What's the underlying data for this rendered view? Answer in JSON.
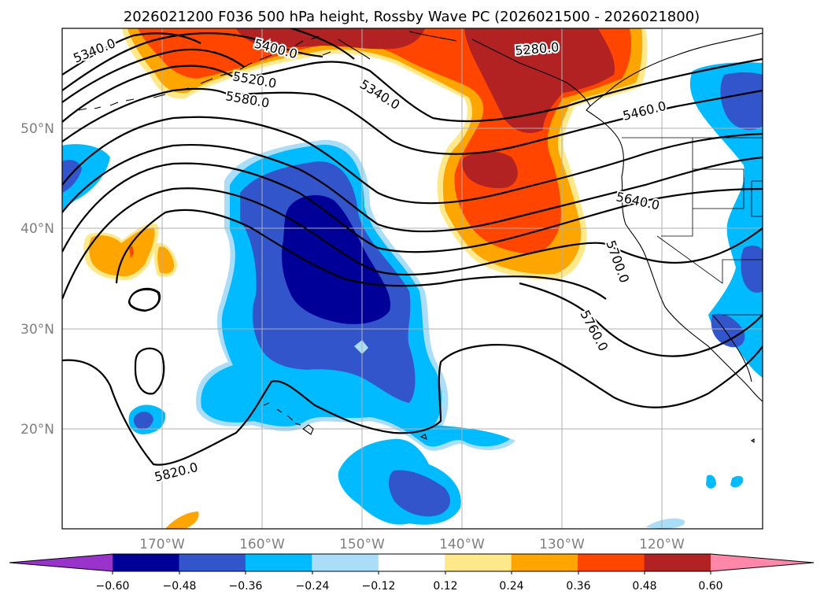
{
  "title": "2026021200 F036 500 hPa height, Rossby Wave PC (2026021500 - 2026021800)",
  "map": {
    "lon_ticks": [
      "170°W",
      "160°W",
      "150°W",
      "140°W",
      "130°W",
      "120°W"
    ],
    "lat_ticks": [
      "50°N",
      "40°N",
      "30°N",
      "20°N"
    ],
    "gridlines": true
  },
  "contour_labels": [
    "5340.0",
    "5400.0",
    "5520.0",
    "5580.0",
    "5340.0",
    "5280.0",
    "5460.0",
    "5640.0",
    "5700.0",
    "5760.0",
    "5820.0"
  ],
  "colorbar": {
    "ticks": [
      "−0.60",
      "−0.48",
      "−0.36",
      "−0.24",
      "−0.12",
      "0.12",
      "0.24",
      "0.36",
      "0.48",
      "0.60"
    ],
    "colors": [
      "#9933cc",
      "#000099",
      "#3355cc",
      "#00bbff",
      "#aaddf8",
      "#ffffff",
      "#ffe88a",
      "#ffa500",
      "#ff4500",
      "#b22222",
      "#ff88aa"
    ]
  }
}
